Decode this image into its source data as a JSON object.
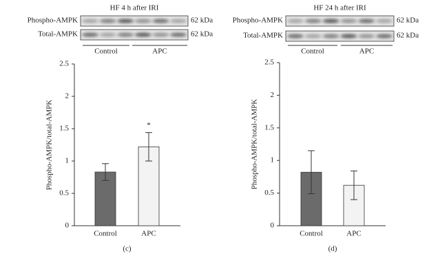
{
  "chart_data": [
    {
      "type": "bar",
      "title": "HF 4 h after IRI",
      "blot_rows": [
        {
          "label": "Phospho-AMPK",
          "size": "62 kDa"
        },
        {
          "label": "Total-AMPK",
          "size": "62 kDa"
        }
      ],
      "blot_groups": [
        "Control",
        "APC"
      ],
      "ylabel": "Phospho-AMPK/total-AMPK",
      "categories": [
        "Control",
        "APC"
      ],
      "values": [
        0.83,
        1.22
      ],
      "errors": [
        0.13,
        0.22
      ],
      "colors": [
        "#6b6b6b",
        "#f3f3f3"
      ],
      "annotation": "*",
      "ylim": [
        0,
        2.5
      ],
      "yticks": [
        0,
        0.5,
        1,
        1.5,
        2,
        2.5
      ],
      "panel_label": "(c)"
    },
    {
      "type": "bar",
      "title": "HF 24 h after IRI",
      "blot_rows": [
        {
          "label": "Phospho-AMPK",
          "size": "62 kDa"
        },
        {
          "label": "Total-AMPK",
          "size": "62 kDa"
        }
      ],
      "blot_groups": [
        "Control",
        "APC"
      ],
      "ylabel": "Phospho-AMPK/total-AMPK",
      "categories": [
        "Control",
        "APC"
      ],
      "values": [
        0.82,
        0.62
      ],
      "errors": [
        0.33,
        0.22
      ],
      "colors": [
        "#6b6b6b",
        "#f3f3f3"
      ],
      "ylim": [
        0,
        2.5
      ],
      "yticks": [
        0,
        0.5,
        1,
        1.5,
        2,
        2.5
      ],
      "panel_label": "(d)"
    }
  ]
}
